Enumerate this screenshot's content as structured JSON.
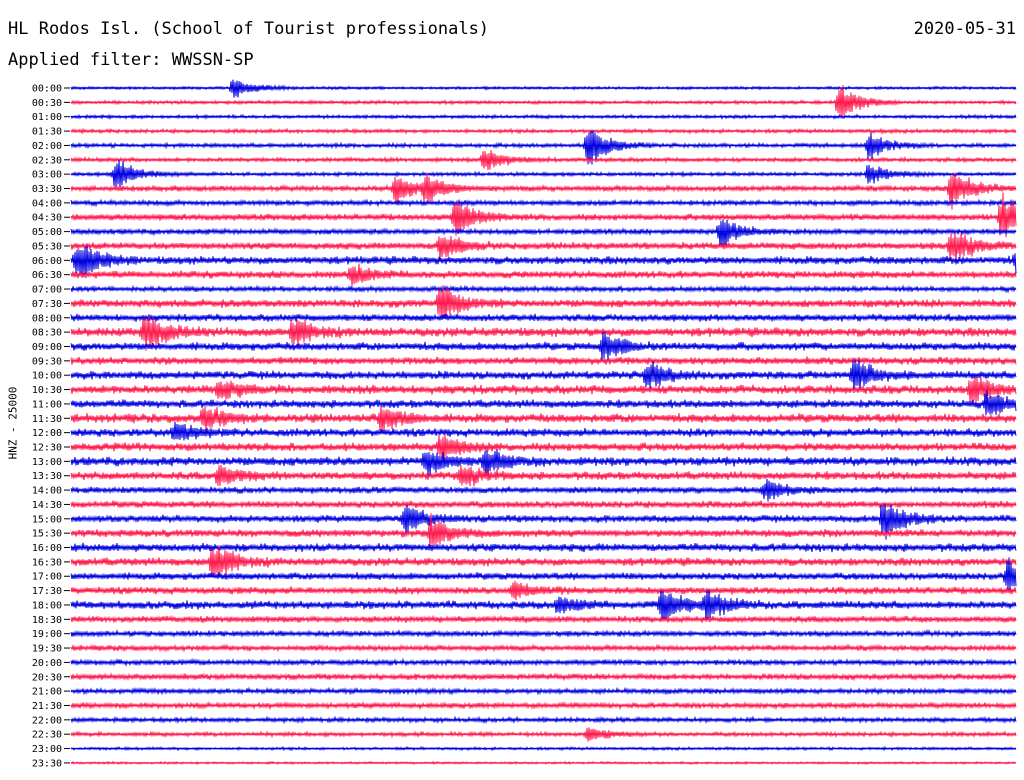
{
  "header": {
    "station": "HL Rodos Isl. (School of Tourist professionals)",
    "date": "2020-05-31",
    "filter": "Applied filter: WWSSN-SP"
  },
  "chart_data": {
    "type": "line",
    "title": "HL Rodos Isl. (School of Tourist professionals)",
    "ylabel": "HNZ - 25000",
    "row_labels": [
      "00:00",
      "00:30",
      "01:00",
      "01:30",
      "02:00",
      "02:30",
      "03:00",
      "03:30",
      "04:00",
      "04:30",
      "05:00",
      "05:30",
      "06:00",
      "06:30",
      "07:00",
      "07:30",
      "08:00",
      "08:30",
      "09:00",
      "09:30",
      "10:00",
      "10:30",
      "11:00",
      "11:30",
      "12:00",
      "12:30",
      "13:00",
      "13:30",
      "14:00",
      "14:30",
      "15:00",
      "15:30",
      "16:00",
      "16:30",
      "17:00",
      "17:30",
      "18:00",
      "18:30",
      "19:00",
      "19:30",
      "20:00",
      "20:30",
      "21:00",
      "21:30",
      "22:00",
      "22:30",
      "23:00",
      "23:30"
    ],
    "series_colors": [
      "#0000e0",
      "#ff1a4e"
    ],
    "row_amplitude": [
      0.15,
      0.18,
      0.18,
      0.2,
      0.22,
      0.22,
      0.2,
      0.3,
      0.28,
      0.35,
      0.3,
      0.38,
      0.45,
      0.4,
      0.28,
      0.45,
      0.4,
      0.5,
      0.45,
      0.42,
      0.45,
      0.5,
      0.45,
      0.5,
      0.45,
      0.45,
      0.5,
      0.45,
      0.35,
      0.38,
      0.4,
      0.42,
      0.45,
      0.45,
      0.4,
      0.4,
      0.45,
      0.35,
      0.3,
      0.3,
      0.3,
      0.32,
      0.28,
      0.3,
      0.25,
      0.22,
      0.15,
      0.12
    ],
    "events": [
      {
        "row": "00:00",
        "minute": 5.5,
        "amp": 2.0
      },
      {
        "row": "00:30",
        "minute": 26.0,
        "amp": 3.5
      },
      {
        "row": "02:00",
        "minute": 17.5,
        "amp": 4.0
      },
      {
        "row": "02:00",
        "minute": 27.0,
        "amp": 2.5
      },
      {
        "row": "02:30",
        "minute": 14.0,
        "amp": 2.5
      },
      {
        "row": "03:00",
        "minute": 1.5,
        "amp": 3.0
      },
      {
        "row": "03:00",
        "minute": 27.0,
        "amp": 2.0
      },
      {
        "row": "03:30",
        "minute": 11.0,
        "amp": 2.5
      },
      {
        "row": "03:30",
        "minute": 12.0,
        "amp": 2.5
      },
      {
        "row": "03:30",
        "minute": 29.8,
        "amp": 4.0
      },
      {
        "row": "04:30",
        "minute": 13.0,
        "amp": 3.5
      },
      {
        "row": "04:30",
        "minute": 31.5,
        "amp": 4.5
      },
      {
        "row": "05:00",
        "minute": 22.0,
        "amp": 3.0
      },
      {
        "row": "05:30",
        "minute": 12.5,
        "amp": 2.5
      },
      {
        "row": "05:30",
        "minute": 29.8,
        "amp": 3.5
      },
      {
        "row": "06:00",
        "minute": 0.2,
        "amp": 4.0
      },
      {
        "row": "06:00",
        "minute": 32.0,
        "amp": 2.5
      },
      {
        "row": "06:30",
        "minute": 9.5,
        "amp": 2.0
      },
      {
        "row": "07:30",
        "minute": 12.5,
        "amp": 3.5
      },
      {
        "row": "08:30",
        "minute": 2.5,
        "amp": 3.5
      },
      {
        "row": "08:30",
        "minute": 7.5,
        "amp": 2.5
      },
      {
        "row": "09:00",
        "minute": 18.0,
        "amp": 2.5
      },
      {
        "row": "10:00",
        "minute": 26.5,
        "amp": 3.0
      },
      {
        "row": "10:00",
        "minute": 19.5,
        "amp": 2.5
      },
      {
        "row": "10:30",
        "minute": 5.0,
        "amp": 2.0
      },
      {
        "row": "10:30",
        "minute": 30.5,
        "amp": 2.5
      },
      {
        "row": "11:00",
        "minute": 31.0,
        "amp": 2.5
      },
      {
        "row": "11:30",
        "minute": 4.5,
        "amp": 2.5
      },
      {
        "row": "11:30",
        "minute": 10.5,
        "amp": 2.5
      },
      {
        "row": "12:00",
        "minute": 3.5,
        "amp": 2.0
      },
      {
        "row": "12:30",
        "minute": 12.5,
        "amp": 2.5
      },
      {
        "row": "13:00",
        "minute": 12.0,
        "amp": 2.5
      },
      {
        "row": "13:00",
        "minute": 14.0,
        "amp": 2.5
      },
      {
        "row": "13:30",
        "minute": 5.0,
        "amp": 2.0
      },
      {
        "row": "13:30",
        "minute": 13.2,
        "amp": 2.0
      },
      {
        "row": "14:00",
        "minute": 23.5,
        "amp": 2.0
      },
      {
        "row": "15:00",
        "minute": 27.5,
        "amp": 4.0
      },
      {
        "row": "15:00",
        "minute": 11.3,
        "amp": 2.5
      },
      {
        "row": "15:30",
        "minute": 12.2,
        "amp": 3.0
      },
      {
        "row": "16:30",
        "minute": 4.8,
        "amp": 3.5
      },
      {
        "row": "17:00",
        "minute": 31.7,
        "amp": 3.0
      },
      {
        "row": "17:30",
        "minute": 15.0,
        "amp": 1.5
      },
      {
        "row": "18:00",
        "minute": 20.0,
        "amp": 3.0
      },
      {
        "row": "18:00",
        "minute": 21.5,
        "amp": 2.5
      },
      {
        "row": "18:00",
        "minute": 16.5,
        "amp": 1.5
      },
      {
        "row": "22:30",
        "minute": 17.5,
        "amp": 1.5
      }
    ]
  }
}
